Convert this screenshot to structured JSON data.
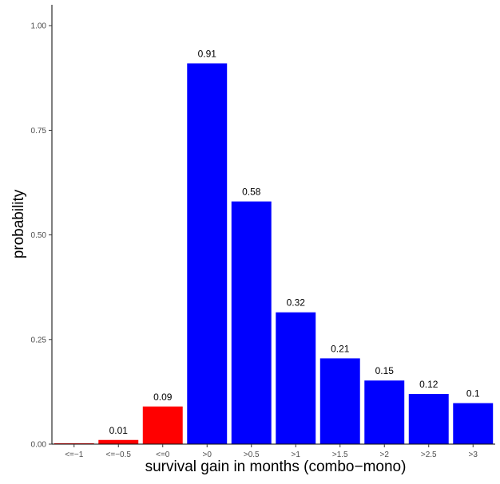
{
  "chart_data": {
    "type": "bar",
    "title": "",
    "xlabel": "survival gain in months (combo−mono)",
    "ylabel": "probability",
    "ylim": [
      0,
      1.05
    ],
    "yticks": [
      0.0,
      0.25,
      0.5,
      0.75,
      1.0
    ],
    "ytick_labels": [
      "0.00",
      "0.25",
      "0.50",
      "0.75",
      "1.00"
    ],
    "categories": [
      "<=−1",
      "<=−0.5",
      "<=0",
      ">0",
      ">0.5",
      ">1",
      ">1.5",
      ">2",
      ">2.5",
      ">3"
    ],
    "values": [
      0.002,
      0.01,
      0.09,
      0.91,
      0.58,
      0.315,
      0.205,
      0.152,
      0.12,
      0.098
    ],
    "data_labels": [
      "",
      "0.01",
      "0.09",
      "0.91",
      "0.58",
      "0.32",
      "0.21",
      "0.15",
      "0.12",
      "0.1"
    ],
    "colors": [
      "#ff0000",
      "#ff0000",
      "#ff0000",
      "#0000ff",
      "#0000ff",
      "#0000ff",
      "#0000ff",
      "#0000ff",
      "#0000ff",
      "#0000ff"
    ],
    "grid": false,
    "legend": "none"
  }
}
